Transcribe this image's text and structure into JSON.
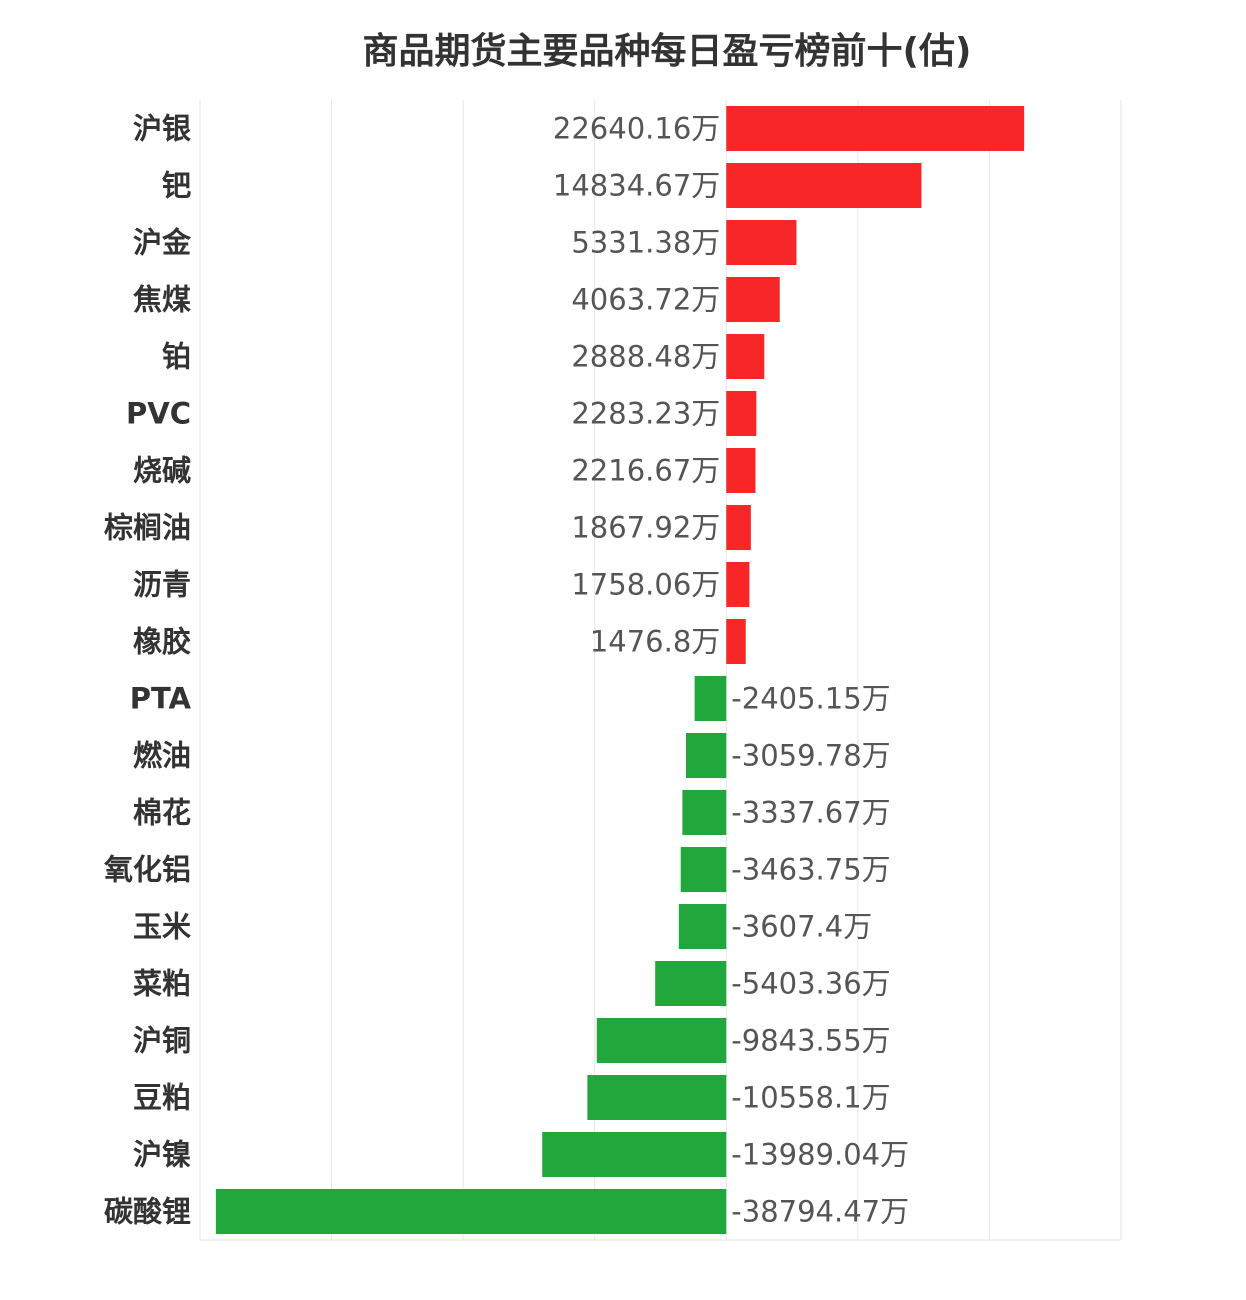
{
  "chart_data": {
    "type": "bar",
    "orientation": "horizontal",
    "title": "商品期货主要品种每日盈亏榜前十(估)",
    "unit_suffix": "万",
    "categories": [
      "沪银",
      "钯",
      "沪金",
      "焦煤",
      "铂",
      "PVC",
      "烧碱",
      "棕榈油",
      "沥青",
      "橡胶",
      "PTA",
      "燃油",
      "棉花",
      "氧化铝",
      "玉米",
      "菜粕",
      "沪铜",
      "豆粕",
      "沪镍",
      "碳酸锂"
    ],
    "values": [
      22640.16,
      14834.67,
      5331.38,
      4063.72,
      2888.48,
      2283.23,
      2216.67,
      1867.92,
      1758.06,
      1476.8,
      -2405.15,
      -3059.78,
      -3337.67,
      -3463.75,
      -3607.4,
      -5403.36,
      -9843.55,
      -10558.1,
      -13989.04,
      -38794.47
    ],
    "value_labels": [
      "22640.16万",
      "14834.67万",
      "5331.38万",
      "4063.72万",
      "2888.48万",
      "2283.23万",
      "2216.67万",
      "1867.92万",
      "1758.06万",
      "1476.8万",
      "-2405.15万",
      "-3059.78万",
      "-3337.67万",
      "-3463.75万",
      "-3607.4万",
      "-5403.36万",
      "-9843.55万",
      "-10558.1万",
      "-13989.04万",
      "-38794.47万"
    ],
    "xlim": [
      -40000,
      30000
    ],
    "grid_step": 10000,
    "grid": true,
    "xlabel": "",
    "ylabel": "",
    "colors": {
      "positive": "#f82626",
      "negative": "#21a73c",
      "grid": "#e6e6e6"
    }
  }
}
